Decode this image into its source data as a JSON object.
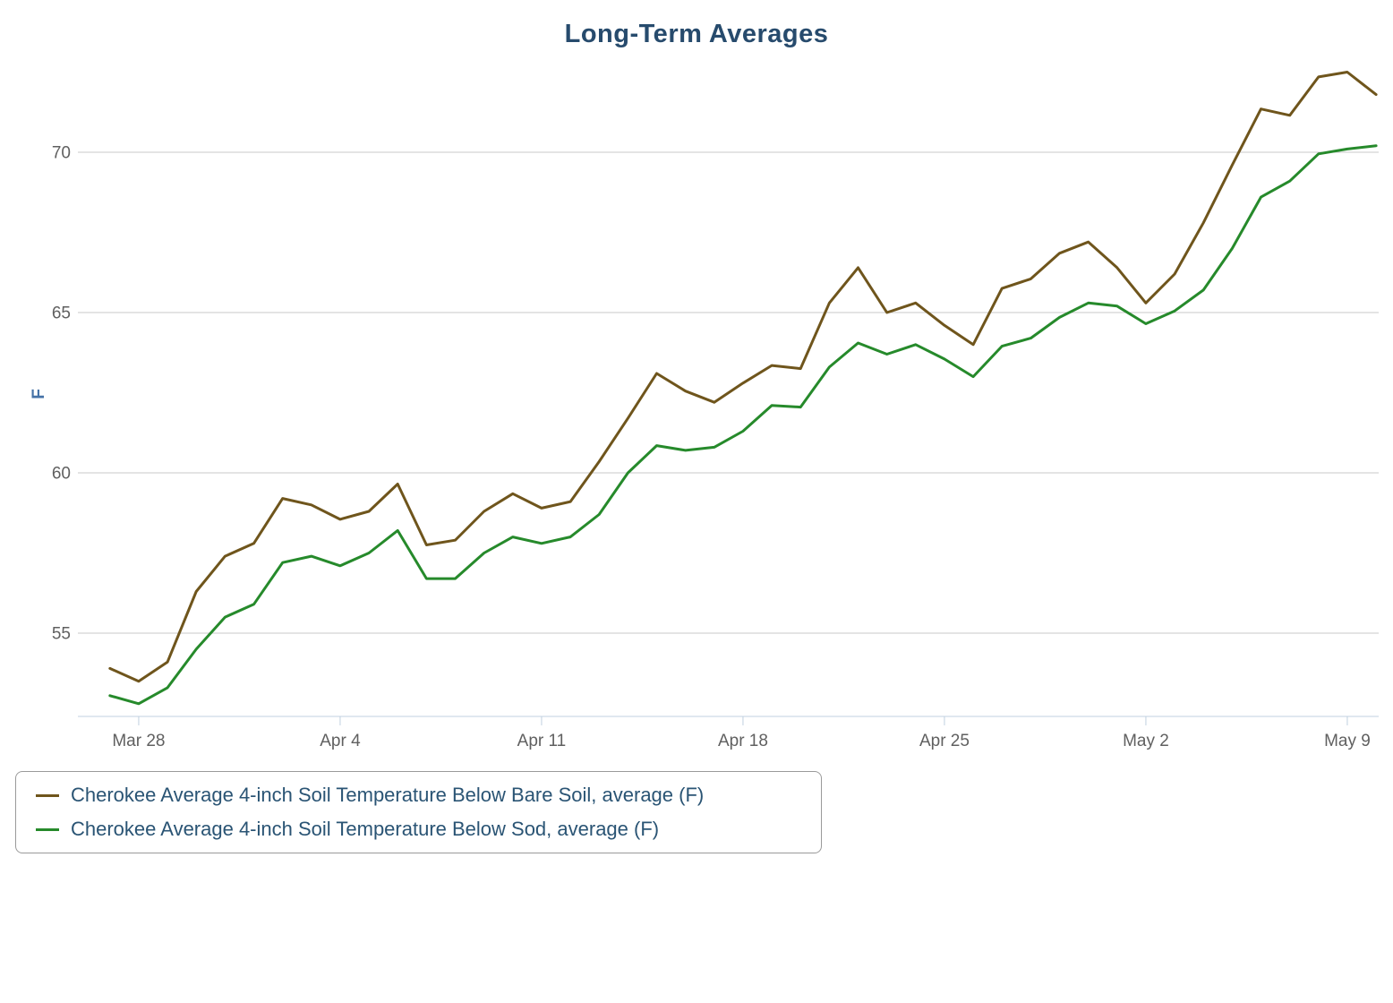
{
  "title": "Long-Term Averages",
  "y_axis": {
    "label": "F",
    "ticks": [
      55,
      60,
      65,
      70
    ]
  },
  "x_axis": {
    "tick_labels": [
      "Mar 28",
      "Apr 4",
      "Apr 11",
      "Apr 18",
      "Apr 25",
      "May 2",
      "May 9"
    ]
  },
  "colors": {
    "grid": "#C9C9C9",
    "axis_line": "#C0D0E0",
    "axis_text": "#606060",
    "title_text": "#274B6D",
    "legend_text": "#2A5474",
    "legend_border": "#9A9A9A",
    "y_title": "#4572A7"
  },
  "chart_data": {
    "type": "line",
    "title": "Long-Term Averages",
    "xlabel": "",
    "ylabel": "F",
    "ylim": [
      52.4,
      73.2
    ],
    "grid": "horizontal",
    "legend_position": "bottom-left",
    "y_ticks": [
      55,
      60,
      65,
      70
    ],
    "x": [
      "Mar 27",
      "Mar 28",
      "Mar 29",
      "Mar 30",
      "Mar 31",
      "Apr 1",
      "Apr 2",
      "Apr 3",
      "Apr 4",
      "Apr 5",
      "Apr 6",
      "Apr 7",
      "Apr 8",
      "Apr 9",
      "Apr 10",
      "Apr 11",
      "Apr 12",
      "Apr 13",
      "Apr 14",
      "Apr 15",
      "Apr 16",
      "Apr 17",
      "Apr 18",
      "Apr 19",
      "Apr 20",
      "Apr 21",
      "Apr 22",
      "Apr 23",
      "Apr 24",
      "Apr 25",
      "Apr 26",
      "Apr 27",
      "Apr 28",
      "Apr 29",
      "Apr 30",
      "May 1",
      "May 2",
      "May 3",
      "May 4",
      "May 5",
      "May 6",
      "May 7",
      "May 8",
      "May 9",
      "May 10"
    ],
    "series": [
      {
        "name": "Cherokee Average 4-inch Soil Temperature Below Bare Soil, average (F)",
        "color": "#6F551C",
        "values": [
          53.9,
          53.5,
          54.1,
          56.3,
          57.4,
          57.8,
          59.2,
          59.0,
          58.55,
          58.8,
          59.65,
          57.75,
          57.9,
          58.8,
          59.35,
          58.9,
          59.1,
          60.35,
          61.7,
          63.1,
          62.55,
          62.2,
          62.8,
          63.35,
          63.25,
          65.3,
          66.4,
          65.0,
          65.3,
          64.6,
          64.0,
          65.75,
          66.05,
          66.85,
          67.2,
          66.4,
          65.3,
          66.2,
          67.8,
          69.6,
          71.35,
          71.15,
          72.35,
          72.5,
          71.8
        ]
      },
      {
        "name": "Cherokee Average 4-inch Soil Temperature Below Sod, average (F)",
        "color": "#268A2B",
        "values": [
          53.05,
          52.8,
          53.3,
          54.5,
          55.5,
          55.9,
          57.2,
          57.4,
          57.1,
          57.5,
          58.2,
          56.7,
          56.7,
          57.5,
          58.0,
          57.8,
          58.0,
          58.7,
          60.0,
          60.85,
          60.7,
          60.8,
          61.3,
          62.1,
          62.05,
          63.3,
          64.05,
          63.7,
          64.0,
          63.55,
          63.0,
          63.95,
          64.2,
          64.85,
          65.3,
          65.2,
          64.65,
          65.05,
          65.7,
          67.0,
          68.6,
          69.1,
          69.95,
          70.1,
          70.2
        ]
      }
    ]
  }
}
